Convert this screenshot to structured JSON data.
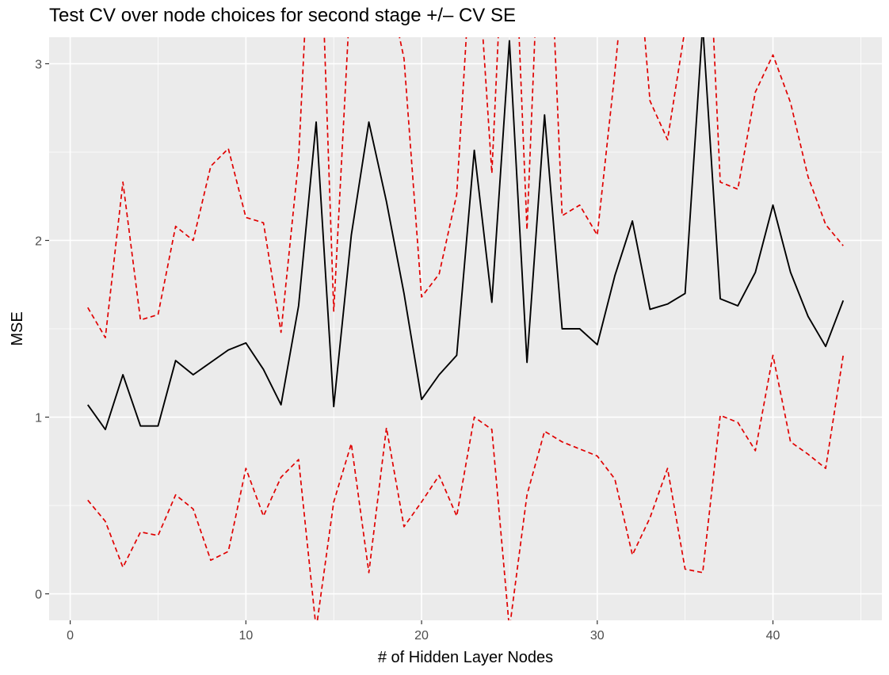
{
  "chart_data": {
    "type": "line",
    "title": "Test CV over node choices for second stage +/– CV SE",
    "xlabel": "# of Hidden Layer Nodes",
    "ylabel": "MSE",
    "xlim": [
      -1.2,
      46.2
    ],
    "ylim": [
      -0.15,
      3.15
    ],
    "x_ticks": [
      0,
      10,
      20,
      30,
      40
    ],
    "y_ticks": [
      0,
      1,
      2,
      3
    ],
    "grid": true,
    "legend": "none",
    "x": [
      1,
      2,
      3,
      4,
      5,
      6,
      7,
      8,
      9,
      10,
      11,
      12,
      13,
      14,
      15,
      16,
      17,
      18,
      19,
      20,
      21,
      22,
      23,
      24,
      25,
      26,
      27,
      28,
      29,
      30,
      31,
      32,
      33,
      34,
      35,
      36,
      37,
      38,
      39,
      40,
      41,
      42,
      43,
      44
    ],
    "series": [
      {
        "role": "mean",
        "color": "#000000",
        "dash": "solid",
        "values": [
          1.07,
          0.93,
          1.24,
          0.95,
          0.95,
          1.32,
          1.24,
          1.31,
          1.38,
          1.42,
          1.27,
          1.07,
          1.63,
          2.67,
          1.06,
          2.03,
          2.67,
          2.22,
          1.7,
          1.1,
          1.24,
          1.35,
          2.51,
          1.65,
          3.13,
          1.31,
          2.71,
          1.5,
          1.5,
          1.41,
          1.8,
          2.11,
          1.61,
          1.64,
          1.7,
          3.22,
          1.67,
          1.63,
          1.82,
          2.2,
          1.82,
          1.57,
          1.4,
          1.66
        ]
      },
      {
        "role": "upper",
        "color": "#e00000",
        "dash": "dashed",
        "values": [
          1.62,
          1.45,
          2.33,
          1.55,
          1.58,
          2.08,
          2.0,
          2.42,
          2.52,
          2.13,
          2.1,
          1.48,
          2.46,
          4.5,
          1.6,
          3.5,
          4.2,
          3.5,
          3.03,
          1.68,
          1.81,
          2.26,
          3.9,
          2.38,
          4.5,
          2.06,
          4.5,
          2.14,
          2.2,
          2.03,
          2.95,
          4.0,
          2.79,
          2.57,
          3.2,
          4.5,
          2.33,
          2.29,
          2.84,
          3.05,
          2.78,
          2.36,
          2.09,
          1.97
        ]
      },
      {
        "role": "lower",
        "color": "#e00000",
        "dash": "dashed",
        "values": [
          0.53,
          0.41,
          0.15,
          0.35,
          0.33,
          0.56,
          0.48,
          0.19,
          0.24,
          0.71,
          0.44,
          0.66,
          0.76,
          -0.2,
          0.52,
          0.85,
          0.12,
          0.94,
          0.38,
          0.52,
          0.67,
          0.44,
          1.0,
          0.93,
          -0.2,
          0.56,
          0.92,
          0.86,
          0.82,
          0.78,
          0.65,
          0.22,
          0.43,
          0.71,
          0.14,
          0.12,
          1.01,
          0.97,
          0.81,
          1.35,
          0.86,
          0.79,
          0.71,
          1.35
        ]
      }
    ]
  }
}
